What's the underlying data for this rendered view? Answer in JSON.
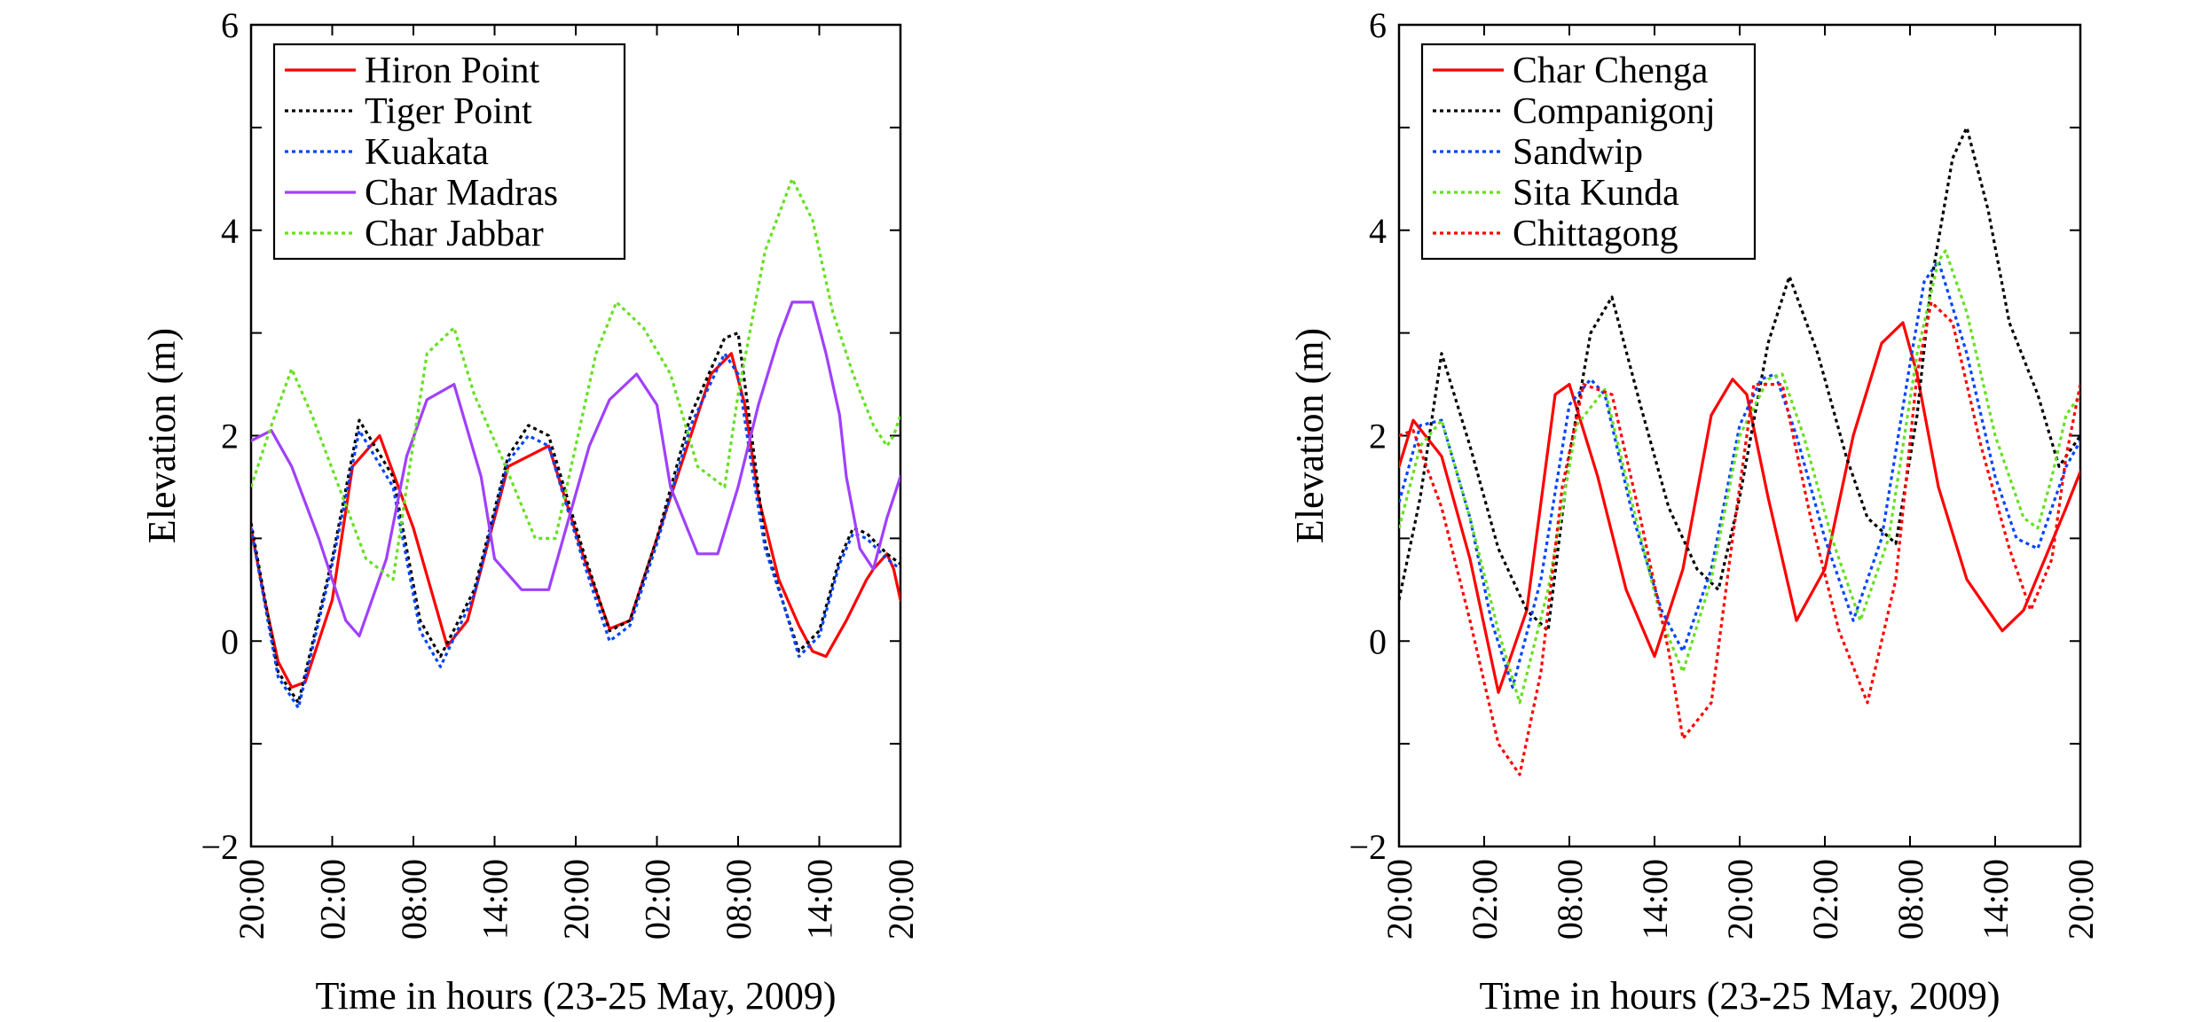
{
  "chart_data": [
    {
      "type": "line",
      "xlabel": "Time in hours (23-25 May, 2009)",
      "ylabel": "Elevation (m)",
      "xlim": [
        0,
        48
      ],
      "ylim": [
        -2,
        6
      ],
      "x_unit": "hours from 20:00 on 23 May 2009",
      "x_ticks": [
        0,
        6,
        12,
        18,
        24,
        30,
        36,
        42,
        48
      ],
      "x_tick_labels": [
        "20:00",
        "02:00",
        "08:00",
        "14:00",
        "20:00",
        "02:00",
        "08:00",
        "14:00",
        "20:00"
      ],
      "y_ticks": [
        -2,
        0,
        2,
        4,
        6
      ],
      "y_tick_labels": [
        "−2",
        "0",
        "2",
        "4",
        "6"
      ],
      "grid": false,
      "legend_position": "top-left",
      "series": [
        {
          "name": "Hiron Point",
          "color": "#ff0000",
          "style": "solid",
          "x": [
            0,
            1,
            2,
            3,
            4,
            6,
            7.5,
            9.5,
            12,
            14.5,
            16,
            19,
            22,
            24.5,
            26.5,
            28,
            31,
            34,
            35.5,
            36.5,
            37.5,
            39,
            40.5,
            41.5,
            42.5,
            44,
            45.5,
            46,
            47,
            47.5,
            48
          ],
          "y": [
            1.1,
            0.4,
            -0.2,
            -0.45,
            -0.4,
            0.4,
            1.7,
            2.0,
            1.1,
            -0.05,
            0.2,
            1.7,
            1.9,
            0.85,
            0.12,
            0.2,
            1.4,
            2.6,
            2.8,
            2.3,
            1.4,
            0.6,
            0.15,
            -0.1,
            -0.15,
            0.2,
            0.6,
            0.7,
            0.85,
            0.7,
            0.4
          ]
        },
        {
          "name": "Tiger Point",
          "color": "#000000",
          "style": "dotted",
          "x": [
            0,
            2,
            3.5,
            6,
            8,
            10.5,
            12.5,
            14,
            16.5,
            19,
            20.5,
            22,
            24.5,
            26.5,
            28,
            30,
            32.5,
            35,
            36,
            37,
            38,
            39.5,
            40.5,
            42,
            43.5,
            44.5,
            45.5,
            47,
            48
          ],
          "y": [
            1.15,
            -0.3,
            -0.6,
            0.8,
            2.15,
            1.6,
            0.2,
            -0.15,
            0.5,
            1.8,
            2.1,
            2.0,
            0.9,
            0.1,
            0.2,
            1.0,
            2.2,
            2.95,
            3.0,
            2.0,
            0.95,
            0.3,
            -0.1,
            0.1,
            0.8,
            1.1,
            1.05,
            0.85,
            0.75
          ]
        },
        {
          "name": "Kuakata",
          "color": "#0044ff",
          "style": "dotted",
          "x": [
            0,
            2,
            3.5,
            6,
            8,
            10.5,
            12.5,
            14,
            16.5,
            19,
            20.5,
            22,
            24.5,
            26.5,
            28,
            30,
            32.5,
            35,
            36,
            37,
            38,
            39.5,
            40.5,
            42,
            43.5,
            44.5,
            45.5,
            47,
            48
          ],
          "y": [
            1.1,
            -0.35,
            -0.65,
            0.75,
            2.05,
            1.5,
            0.1,
            -0.25,
            0.45,
            1.75,
            2.0,
            1.9,
            0.8,
            0.0,
            0.15,
            0.95,
            2.1,
            2.8,
            2.6,
            1.7,
            0.9,
            0.3,
            -0.15,
            0.05,
            0.75,
            1.05,
            1.0,
            0.8,
            0.7
          ]
        },
        {
          "name": "Char Madras",
          "color": "#a040ff",
          "style": "solid",
          "x": [
            0,
            1.5,
            3,
            5,
            7,
            8,
            10,
            11.5,
            13,
            15,
            17,
            18,
            20,
            22,
            23.5,
            25,
            26.5,
            28.5,
            30,
            31,
            33,
            34.5,
            36,
            37.5,
            39,
            40,
            41.5,
            42.5,
            43.5,
            44,
            45,
            46,
            47,
            48
          ],
          "y": [
            1.95,
            2.05,
            1.7,
            1.0,
            0.2,
            0.05,
            0.8,
            1.8,
            2.35,
            2.5,
            1.6,
            0.8,
            0.5,
            0.5,
            1.2,
            1.9,
            2.35,
            2.6,
            2.3,
            1.5,
            0.85,
            0.85,
            1.5,
            2.3,
            2.95,
            3.3,
            3.3,
            2.8,
            2.2,
            1.6,
            0.9,
            0.7,
            1.2,
            1.6
          ]
        },
        {
          "name": "Char Jabbar",
          "color": "#66e020",
          "style": "dotted",
          "x": [
            0,
            1.5,
            3,
            4.5,
            6.5,
            8.5,
            10.5,
            11.5,
            13,
            15,
            16.5,
            18.5,
            21,
            22.5,
            24,
            25.5,
            27,
            29,
            31,
            33,
            35,
            36,
            38,
            40,
            41.5,
            43,
            44.5,
            46,
            47,
            47.5,
            48
          ],
          "y": [
            1.5,
            2.1,
            2.65,
            2.2,
            1.5,
            0.8,
            0.6,
            1.5,
            2.8,
            3.05,
            2.4,
            1.8,
            1.0,
            1.0,
            1.9,
            2.8,
            3.3,
            3.05,
            2.6,
            1.7,
            1.5,
            2.4,
            3.8,
            4.5,
            4.1,
            3.2,
            2.6,
            2.1,
            1.9,
            2.0,
            2.2
          ]
        }
      ]
    },
    {
      "type": "line",
      "xlabel": "Time in hours (23-25 May, 2009)",
      "ylabel": "Elevation (m)",
      "xlim": [
        0,
        48
      ],
      "ylim": [
        -2,
        6
      ],
      "x_unit": "hours from 20:00 on 23 May 2009",
      "x_ticks": [
        0,
        6,
        12,
        18,
        24,
        30,
        36,
        42,
        48
      ],
      "x_tick_labels": [
        "20:00",
        "02:00",
        "08:00",
        "14:00",
        "20:00",
        "02:00",
        "08:00",
        "14:00",
        "20:00"
      ],
      "y_ticks": [
        -2,
        0,
        2,
        4,
        6
      ],
      "y_tick_labels": [
        "−2",
        "0",
        "2",
        "4",
        "6"
      ],
      "grid": false,
      "legend_position": "top-left",
      "series": [
        {
          "name": "Char Chenga",
          "color": "#ff0000",
          "style": "solid",
          "x": [
            0,
            1,
            3,
            5,
            7,
            9,
            11,
            12,
            14,
            16,
            18,
            20,
            22,
            23.5,
            24.5,
            26,
            28,
            30,
            32,
            34,
            35.5,
            36.5,
            38,
            40,
            42.5,
            44,
            45.5,
            47,
            48
          ],
          "y": [
            1.7,
            2.15,
            1.8,
            0.8,
            -0.5,
            0.3,
            2.4,
            2.5,
            1.6,
            0.5,
            -0.15,
            0.7,
            2.2,
            2.55,
            2.4,
            1.4,
            0.2,
            0.7,
            2.0,
            2.9,
            3.1,
            2.6,
            1.5,
            0.6,
            0.1,
            0.3,
            0.8,
            1.3,
            1.65
          ]
        },
        {
          "name": "Companigonj",
          "color": "#000000",
          "style": "dotted",
          "x": [
            0,
            1.5,
            3,
            5,
            7,
            9,
            10.5,
            12,
            13.5,
            15,
            17,
            19,
            21,
            22.5,
            24,
            26,
            27.5,
            29.5,
            31.5,
            33,
            35,
            36.5,
            37.5,
            39,
            40,
            41.5,
            43,
            45,
            46.5,
            47,
            48
          ],
          "y": [
            0.4,
            1.4,
            2.8,
            1.9,
            0.9,
            0.3,
            0.1,
            1.8,
            3.0,
            3.35,
            2.3,
            1.3,
            0.7,
            0.5,
            1.4,
            2.9,
            3.55,
            2.8,
            1.8,
            1.2,
            0.95,
            2.2,
            3.5,
            4.7,
            5.0,
            4.2,
            3.1,
            2.4,
            1.7,
            1.8,
            2.0
          ]
        },
        {
          "name": "Sandwip",
          "color": "#0044ff",
          "style": "dotted",
          "x": [
            0,
            1.5,
            3,
            5,
            6.5,
            8,
            10,
            12,
            13.5,
            14.5,
            16.5,
            18.5,
            20,
            22,
            24,
            25.5,
            26.5,
            28,
            30,
            32,
            34,
            36,
            37,
            38,
            40,
            42,
            43.5,
            45,
            46,
            47,
            48
          ],
          "y": [
            1.35,
            2.1,
            2.15,
            1.2,
            0.2,
            -0.45,
            0.6,
            2.3,
            2.55,
            2.4,
            1.2,
            0.3,
            -0.1,
            0.7,
            2.1,
            2.55,
            2.6,
            2.0,
            1.0,
            0.2,
            1.0,
            2.7,
            3.5,
            3.7,
            2.8,
            1.6,
            1.0,
            0.9,
            1.3,
            1.7,
            1.95
          ]
        },
        {
          "name": "Sita Kunda",
          "color": "#66e020",
          "style": "dotted",
          "x": [
            0,
            1.5,
            3,
            5,
            7,
            8.5,
            10.5,
            12.5,
            14.5,
            16.5,
            18.5,
            20,
            22,
            24,
            26,
            27,
            28.5,
            30.5,
            32.5,
            34.5,
            36.5,
            38,
            38.5,
            40,
            42,
            44,
            45,
            46,
            47,
            48
          ],
          "y": [
            1.1,
            1.9,
            2.15,
            1.2,
            0.1,
            -0.6,
            0.5,
            2.1,
            2.45,
            1.3,
            0.2,
            -0.3,
            0.6,
            2.0,
            2.55,
            2.6,
            2.0,
            1.0,
            0.2,
            1.0,
            2.8,
            3.7,
            3.8,
            3.2,
            2.0,
            1.2,
            1.1,
            1.6,
            2.2,
            2.4
          ]
        },
        {
          "name": "Chittagong",
          "color": "#ff0000",
          "style": "dotted",
          "x": [
            0,
            1,
            3,
            5,
            7,
            8.5,
            10,
            11.5,
            13,
            15,
            17,
            19,
            20,
            22,
            23.5,
            25,
            27,
            29,
            31,
            33,
            35,
            36.5,
            37.5,
            39,
            41,
            43,
            44.5,
            46,
            47,
            48
          ],
          "y": [
            2.0,
            2.05,
            1.3,
            0.2,
            -1.0,
            -1.3,
            -0.3,
            1.5,
            2.5,
            2.4,
            1.2,
            -0.1,
            -0.95,
            -0.6,
            1.0,
            2.5,
            2.5,
            1.2,
            0.1,
            -0.6,
            0.6,
            2.6,
            3.3,
            3.1,
            1.9,
            0.9,
            0.3,
            0.8,
            1.8,
            2.5
          ]
        }
      ]
    }
  ]
}
